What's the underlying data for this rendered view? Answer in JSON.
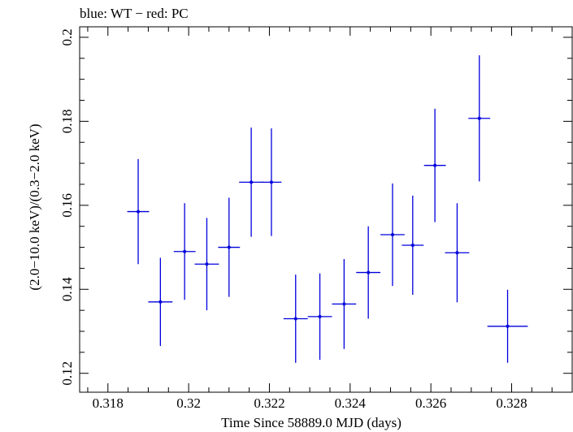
{
  "chart_data": {
    "type": "scatter",
    "title": "blue: WT − red: PC",
    "xlabel": "Time Since 58889.0 MJD (days)",
    "ylabel": "(2.0−10.0 keV)/(0.3−2.0 keV)",
    "xlim": [
      0.3173,
      0.3295
    ],
    "ylim": [
      0.1155,
      0.2025
    ],
    "xticks": [
      0.318,
      0.32,
      0.322,
      0.324,
      0.326,
      0.328
    ],
    "xtick_labels": [
      "0.318",
      "0.32",
      "0.322",
      "0.324",
      "0.326",
      "0.328"
    ],
    "yticks": [
      0.12,
      0.14,
      0.16,
      0.18,
      0.2
    ],
    "ytick_labels": [
      "0.12",
      "0.14",
      "0.16",
      "0.18",
      "0.2"
    ],
    "series": [
      {
        "color": "#0000dd",
        "points": [
          {
            "x": 0.31875,
            "xerr": 0.00027,
            "y": 0.1585,
            "yerr": 0.0125
          },
          {
            "x": 0.3193,
            "xerr": 0.0003,
            "y": 0.137,
            "yerr": 0.0105
          },
          {
            "x": 0.3199,
            "xerr": 0.00027,
            "y": 0.149,
            "yerr": 0.0115
          },
          {
            "x": 0.32045,
            "xerr": 0.0003,
            "y": 0.146,
            "yerr": 0.011
          },
          {
            "x": 0.321,
            "xerr": 0.00027,
            "y": 0.15,
            "yerr": 0.0118
          },
          {
            "x": 0.32155,
            "xerr": 0.0003,
            "y": 0.1655,
            "yerr": 0.013
          },
          {
            "x": 0.32205,
            "xerr": 0.00025,
            "y": 0.1655,
            "yerr": 0.0128
          },
          {
            "x": 0.32265,
            "xerr": 0.0003,
            "y": 0.133,
            "yerr": 0.0105
          },
          {
            "x": 0.32325,
            "xerr": 0.0003,
            "y": 0.1335,
            "yerr": 0.0103
          },
          {
            "x": 0.32385,
            "xerr": 0.0003,
            "y": 0.1365,
            "yerr": 0.0107
          },
          {
            "x": 0.32445,
            "xerr": 0.0003,
            "y": 0.144,
            "yerr": 0.011
          },
          {
            "x": 0.32505,
            "xerr": 0.0003,
            "y": 0.153,
            "yerr": 0.0122
          },
          {
            "x": 0.32555,
            "xerr": 0.00027,
            "y": 0.1505,
            "yerr": 0.0118
          },
          {
            "x": 0.3261,
            "xerr": 0.00027,
            "y": 0.1695,
            "yerr": 0.0135
          },
          {
            "x": 0.32665,
            "xerr": 0.0003,
            "y": 0.1487,
            "yerr": 0.0118
          },
          {
            "x": 0.3272,
            "xerr": 0.00027,
            "y": 0.1807,
            "yerr": 0.015
          },
          {
            "x": 0.3279,
            "xerr": 0.0005,
            "y": 0.1312,
            "yerr": 0.0087
          }
        ]
      }
    ]
  }
}
